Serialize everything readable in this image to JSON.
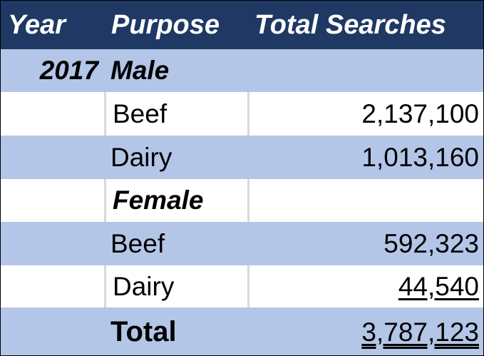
{
  "header": {
    "col_year": "Year",
    "col_purpose": "Purpose",
    "col_total": "Total Searches"
  },
  "rows": [
    {
      "year": "2017",
      "purpose": "Male",
      "value": ""
    },
    {
      "year": "",
      "purpose": "Beef",
      "value": "2,137,100"
    },
    {
      "year": "",
      "purpose": "Dairy",
      "value": "1,013,160"
    },
    {
      "year": "",
      "purpose": "Female",
      "value": ""
    },
    {
      "year": "",
      "purpose": "Beef",
      "value": "592,323"
    },
    {
      "year": "",
      "purpose": "Dairy",
      "value": "44,540"
    }
  ],
  "total": {
    "label": "Total",
    "value": "3,787,123"
  },
  "colors": {
    "header_bg": "#1f3864",
    "band_blue": "#b4c6e7",
    "band_white": "#ffffff",
    "header_text": "#ffffff"
  }
}
